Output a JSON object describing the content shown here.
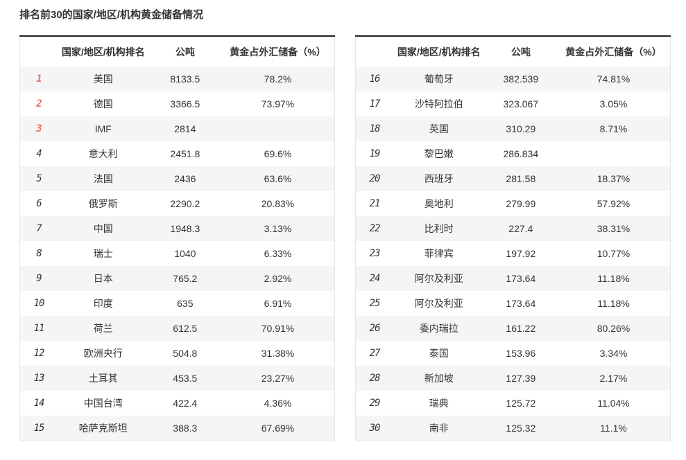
{
  "title": "排名前30的国家/地区/机构黄金储备情况",
  "headers": {
    "rank": "",
    "name": "国家/地区/机构排名",
    "tons": "公吨",
    "pct": "黄金占外汇储备（%）"
  },
  "top_highlight_count": 3,
  "colors": {
    "rank_top3": "#ee6f6f",
    "rank_normal": "#8a8a8a",
    "row_stripe": "#f5f5f5",
    "table_top_border": "#212121",
    "text": "#333333"
  },
  "left_table": {
    "rows": [
      {
        "rank": "1",
        "name": "美国",
        "tons": "8133.5",
        "pct": "78.2%"
      },
      {
        "rank": "2",
        "name": "德国",
        "tons": "3366.5",
        "pct": "73.97%"
      },
      {
        "rank": "3",
        "name": "IMF",
        "tons": "2814",
        "pct": ""
      },
      {
        "rank": "4",
        "name": "意大利",
        "tons": "2451.8",
        "pct": "69.6%"
      },
      {
        "rank": "5",
        "name": "法国",
        "tons": "2436",
        "pct": "63.6%"
      },
      {
        "rank": "6",
        "name": "俄罗斯",
        "tons": "2290.2",
        "pct": "20.83%"
      },
      {
        "rank": "7",
        "name": "中国",
        "tons": "1948.3",
        "pct": "3.13%"
      },
      {
        "rank": "8",
        "name": "瑞士",
        "tons": "1040",
        "pct": "6.33%"
      },
      {
        "rank": "9",
        "name": "日本",
        "tons": "765.2",
        "pct": "2.92%"
      },
      {
        "rank": "10",
        "name": "印度",
        "tons": "635",
        "pct": "6.91%"
      },
      {
        "rank": "11",
        "name": "荷兰",
        "tons": "612.5",
        "pct": "70.91%"
      },
      {
        "rank": "12",
        "name": "欧洲央行",
        "tons": "504.8",
        "pct": "31.38%"
      },
      {
        "rank": "13",
        "name": "土耳其",
        "tons": "453.5",
        "pct": "23.27%"
      },
      {
        "rank": "14",
        "name": "中国台湾",
        "tons": "422.4",
        "pct": "4.36%"
      },
      {
        "rank": "15",
        "name": "哈萨克斯坦",
        "tons": "388.3",
        "pct": "67.69%"
      }
    ]
  },
  "right_table": {
    "rows": [
      {
        "rank": "16",
        "name": "葡萄牙",
        "tons": "382.539",
        "pct": "74.81%"
      },
      {
        "rank": "17",
        "name": "沙特阿拉伯",
        "tons": "323.067",
        "pct": "3.05%"
      },
      {
        "rank": "18",
        "name": "英国",
        "tons": "310.29",
        "pct": "8.71%"
      },
      {
        "rank": "19",
        "name": "黎巴嫩",
        "tons": "286.834",
        "pct": ""
      },
      {
        "rank": "20",
        "name": "西班牙",
        "tons": "281.58",
        "pct": "18.37%"
      },
      {
        "rank": "21",
        "name": "奥地利",
        "tons": "279.99",
        "pct": "57.92%"
      },
      {
        "rank": "22",
        "name": "比利时",
        "tons": "227.4",
        "pct": "38.31%"
      },
      {
        "rank": "23",
        "name": "菲律宾",
        "tons": "197.92",
        "pct": "10.77%"
      },
      {
        "rank": "24",
        "name": "阿尔及利亚",
        "tons": "173.64",
        "pct": "11.18%"
      },
      {
        "rank": "25",
        "name": "阿尔及利亚",
        "tons": "173.64",
        "pct": "11.18%"
      },
      {
        "rank": "26",
        "name": "委内瑞拉",
        "tons": "161.22",
        "pct": "80.26%"
      },
      {
        "rank": "27",
        "name": "泰国",
        "tons": "153.96",
        "pct": "3.34%"
      },
      {
        "rank": "28",
        "name": "新加坡",
        "tons": "127.39",
        "pct": "2.17%"
      },
      {
        "rank": "29",
        "name": "瑞典",
        "tons": "125.72",
        "pct": "11.04%"
      },
      {
        "rank": "30",
        "name": "南非",
        "tons": "125.32",
        "pct": "11.1%"
      }
    ]
  }
}
